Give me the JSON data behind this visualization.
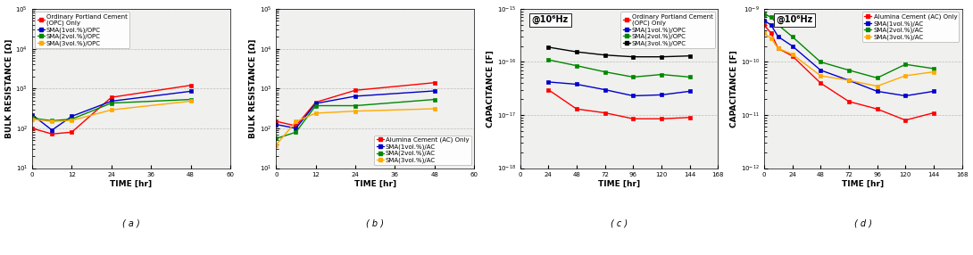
{
  "plot_a": {
    "title": "( a )",
    "xlabel": "TIME [hr]",
    "ylabel": "BULK RESISTANCE [Ω]",
    "xlim": [
      0,
      60
    ],
    "xticks": [
      0,
      12,
      24,
      36,
      48,
      60
    ],
    "ylim": [
      10,
      100000
    ],
    "series": [
      {
        "label": "Ordinary Portland Cement\n(OPC) Only",
        "color": "#ff0000",
        "marker": "s",
        "x": [
          0,
          6,
          12,
          24,
          48
        ],
        "y": [
          100,
          72,
          80,
          600,
          1200
        ]
      },
      {
        "label": "SMA(1vol.%)/OPC",
        "color": "#0000cc",
        "marker": "s",
        "x": [
          0,
          6,
          12,
          24,
          48
        ],
        "y": [
          220,
          90,
          200,
          480,
          850
        ]
      },
      {
        "label": "SMA(2vol.%)/OPC",
        "color": "#008800",
        "marker": "s",
        "x": [
          0,
          6,
          12,
          24,
          48
        ],
        "y": [
          180,
          155,
          170,
          430,
          530
        ]
      },
      {
        "label": "SMA(3vol.%)/OPC",
        "color": "#ffaa00",
        "marker": "s",
        "x": [
          0,
          6,
          12,
          24,
          48
        ],
        "y": [
          170,
          148,
          158,
          290,
          480
        ]
      }
    ],
    "legend_loc": "upper left"
  },
  "plot_b": {
    "title": "( b )",
    "xlabel": "TIME [hr]",
    "ylabel": "BULK RESISTANCE [Ω]",
    "xlim": [
      0,
      60
    ],
    "xticks": [
      0,
      12,
      24,
      36,
      48,
      60
    ],
    "ylim": [
      10,
      100000
    ],
    "series": [
      {
        "label": "Alumina Cement (AC) Only",
        "color": "#ff0000",
        "marker": "s",
        "x": [
          0,
          6,
          12,
          24,
          48
        ],
        "y": [
          150,
          115,
          450,
          900,
          1400
        ]
      },
      {
        "label": "SMA(1vol.%)/AC",
        "color": "#0000cc",
        "marker": "s",
        "x": [
          0,
          6,
          12,
          24,
          48
        ],
        "y": [
          125,
          100,
          420,
          640,
          870
        ]
      },
      {
        "label": "SMA(2vol.%)/AC",
        "color": "#008800",
        "marker": "s",
        "x": [
          0,
          6,
          12,
          24,
          48
        ],
        "y": [
          55,
          80,
          370,
          370,
          530
        ]
      },
      {
        "label": "SMA(3vol.%)/AC",
        "color": "#ffaa00",
        "marker": "s",
        "x": [
          0,
          6,
          12,
          24,
          48
        ],
        "y": [
          38,
          148,
          240,
          270,
          310
        ]
      }
    ],
    "legend_loc": "lower right"
  },
  "plot_c": {
    "title": "( c )",
    "xlabel": "TIME [hr]",
    "ylabel": "CAPACITANCE [F]",
    "xlim": [
      0,
      168
    ],
    "xticks": [
      0,
      24,
      48,
      72,
      96,
      120,
      144,
      168
    ],
    "ylim": [
      1e-18,
      1e-15
    ],
    "annotation": "@10⁶Hz",
    "series": [
      {
        "label": "Ordinary Portland Cement\n(OPC) Only",
        "color": "#ff0000",
        "marker": "s",
        "x": [
          24,
          48,
          72,
          96,
          120,
          144
        ],
        "y": [
          3e-17,
          1.3e-17,
          1.1e-17,
          8.5e-18,
          8.5e-18,
          9e-18
        ]
      },
      {
        "label": "SMA(1vol.%)/OPC",
        "color": "#0000cc",
        "marker": "s",
        "x": [
          24,
          48,
          72,
          96,
          120,
          144
        ],
        "y": [
          4.2e-17,
          3.8e-17,
          3e-17,
          2.3e-17,
          2.4e-17,
          2.8e-17
        ]
      },
      {
        "label": "SMA(2vol.%)/OPC",
        "color": "#008800",
        "marker": "s",
        "x": [
          24,
          48,
          72,
          96,
          120,
          144
        ],
        "y": [
          1.1e-16,
          8.5e-17,
          6.5e-17,
          5.2e-17,
          5.8e-17,
          5.2e-17
        ]
      },
      {
        "label": "SMA(3vol.%)/OPC",
        "color": "#000000",
        "marker": "s",
        "x": [
          24,
          48,
          72,
          96,
          120,
          144
        ],
        "y": [
          1.9e-16,
          1.55e-16,
          1.35e-16,
          1.25e-16,
          1.25e-16,
          1.3e-16
        ]
      }
    ],
    "legend_loc": "upper right"
  },
  "plot_d": {
    "title": "( d )",
    "xlabel": "TIME [hr]",
    "ylabel": "CAPACITANCE [F]",
    "xlim": [
      0,
      168
    ],
    "xticks": [
      0,
      24,
      48,
      72,
      96,
      120,
      144,
      168
    ],
    "ylim": [
      1e-12,
      1e-09
    ],
    "annotation": "@10⁶Hz",
    "series": [
      {
        "label": "Alumina Cement (AC) Only",
        "color": "#ff0000",
        "marker": "s",
        "x": [
          0,
          6,
          12,
          24,
          48,
          72,
          96,
          120,
          144
        ],
        "y": [
          5e-10,
          3.5e-10,
          1.8e-10,
          1.3e-10,
          4e-11,
          1.8e-11,
          1.3e-11,
          8e-12,
          1.1e-11
        ]
      },
      {
        "label": "SMA(1vol.%)/AC",
        "color": "#0000cc",
        "marker": "s",
        "x": [
          0,
          6,
          12,
          24,
          48,
          72,
          96,
          120,
          144
        ],
        "y": [
          6e-10,
          5e-10,
          3e-10,
          2e-10,
          7e-11,
          4.5e-11,
          2.8e-11,
          2.3e-11,
          2.8e-11
        ]
      },
      {
        "label": "SMA(2vol.%)/AC",
        "color": "#008800",
        "marker": "s",
        "x": [
          0,
          6,
          12,
          24,
          48,
          72,
          96,
          120,
          144
        ],
        "y": [
          8e-10,
          7e-10,
          5e-10,
          3e-10,
          1e-10,
          7e-11,
          5e-11,
          9e-11,
          7.5e-11
        ]
      },
      {
        "label": "SMA(3vol.%)/AC",
        "color": "#ffaa00",
        "marker": "s",
        "x": [
          0,
          6,
          12,
          24,
          48,
          72,
          96,
          120,
          144
        ],
        "y": [
          3.5e-10,
          2.8e-10,
          1.8e-10,
          1.4e-10,
          5.5e-11,
          4.5e-11,
          3.5e-11,
          5.5e-11,
          6.5e-11
        ]
      }
    ],
    "legend_loc": "upper right"
  },
  "bg_color": "#ffffff",
  "plot_bg": "#f0f0ee",
  "font_size": 6.5,
  "legend_font_size": 5.0,
  "linewidth": 1.0,
  "marker_size": 3.5,
  "grid_color": "#999999",
  "grid_alpha": 0.6
}
